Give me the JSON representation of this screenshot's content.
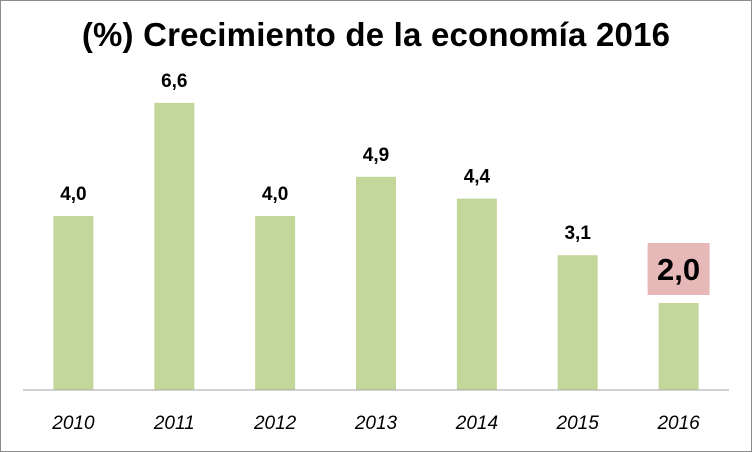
{
  "chart_data": {
    "type": "bar",
    "title": "(%) Crecimiento de la economía 2016",
    "categories": [
      "2010",
      "2011",
      "2012",
      "2013",
      "2014",
      "2015",
      "2016"
    ],
    "values": [
      4.0,
      6.6,
      4.0,
      4.9,
      4.4,
      3.1,
      2.0
    ],
    "data_labels": [
      "4,0",
      "6,6",
      "4,0",
      "4,9",
      "4,4",
      "3,1",
      "2,0"
    ],
    "highlight_category": "2016",
    "xlabel": "",
    "ylabel": "",
    "ylim": [
      0,
      8
    ],
    "grid": false,
    "legend": "none",
    "colors": {
      "bar": "#c4d79b",
      "highlight_label_bg": "#e6b8b7",
      "axis": "#a6a6a6"
    }
  }
}
